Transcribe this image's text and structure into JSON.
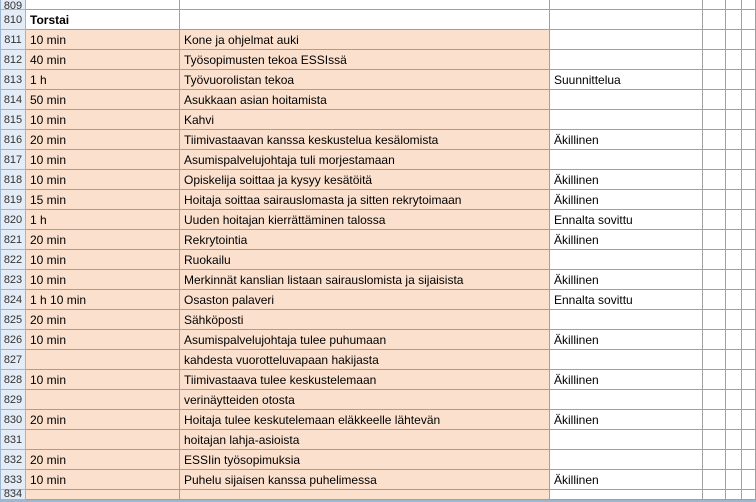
{
  "colors": {
    "highlight": "#fbe1cd",
    "rowhead_bg": "#e4ecf7",
    "rowhead_border": "#9eb6ce",
    "grid": "#a0a0a0",
    "cell_bg": "#ffffff"
  },
  "columns": [
    "rownum",
    "duration",
    "task",
    "status",
    "e",
    "f",
    "g"
  ],
  "rows": [
    {
      "num": "809",
      "b": "",
      "c": "",
      "d": "",
      "hl": false,
      "bold": false,
      "half": true
    },
    {
      "num": "810",
      "b": "Torstai",
      "c": "",
      "d": "",
      "hl": false,
      "bold": true
    },
    {
      "num": "811",
      "b": "10 min",
      "c": "Kone ja ohjelmat auki",
      "d": "",
      "hl": true
    },
    {
      "num": "812",
      "b": "40 min",
      "c": "Työsopimusten tekoa ESSIssä",
      "d": "",
      "hl": true
    },
    {
      "num": "813",
      "b": "1 h",
      "c": "Työvuorolistan tekoa",
      "d": "Suunnittelua",
      "hl": true
    },
    {
      "num": "814",
      "b": "50 min",
      "c": "Asukkaan asian hoitamista",
      "d": "",
      "hl": true
    },
    {
      "num": "815",
      "b": "10 min",
      "c": "Kahvi",
      "d": "",
      "hl": true
    },
    {
      "num": "816",
      "b": "20 min",
      "c": "Tiimivastaavan kanssa keskustelua kesälomista",
      "d": "Äkillinen",
      "hl": true
    },
    {
      "num": "817",
      "b": "10 min",
      "c": "Asumispalvelujohtaja tuli morjestamaan",
      "d": "",
      "hl": true
    },
    {
      "num": "818",
      "b": "10 min",
      "c": "Opiskelija soittaa ja kysyy kesätöitä",
      "d": "Äkillinen",
      "hl": true
    },
    {
      "num": "819",
      "b": "15 min",
      "c": "Hoitaja soittaa sairauslomasta ja sitten rekrytoimaan",
      "d": "Äkillinen",
      "hl": true
    },
    {
      "num": "820",
      "b": "1 h",
      "c": "Uuden hoitajan kierrättäminen talossa",
      "d": "Ennalta sovittu",
      "hl": true
    },
    {
      "num": "821",
      "b": "20 min",
      "c": "Rekrytointia",
      "d": "Äkillinen",
      "hl": true
    },
    {
      "num": "822",
      "b": "10 min",
      "c": "Ruokailu",
      "d": "",
      "hl": true
    },
    {
      "num": "823",
      "b": "10 min",
      "c": "Merkinnät kanslian listaan sairauslomista ja sijaisista",
      "d": "Äkillinen",
      "hl": true
    },
    {
      "num": "824",
      "b": "1 h 10 min",
      "c": "Osaston palaveri",
      "d": "Ennalta sovittu",
      "hl": true
    },
    {
      "num": "825",
      "b": "20 min",
      "c": "Sähköposti",
      "d": "",
      "hl": true
    },
    {
      "num": "826",
      "b": "10 min",
      "c": "Asumispalvelujohtaja tulee puhumaan",
      "d": "Äkillinen",
      "hl": true
    },
    {
      "num": "827",
      "b": "",
      "c": "kahdesta vuorotteluvapaan hakijasta",
      "d": "",
      "hl": true
    },
    {
      "num": "828",
      "b": "10 min",
      "c": "Tiimivastaava tulee keskustelemaan",
      "d": "Äkillinen",
      "hl": true
    },
    {
      "num": "829",
      "b": "",
      "c": "verinäytteiden otosta",
      "d": "",
      "hl": true
    },
    {
      "num": "830",
      "b": "20 min",
      "c": "Hoitaja tulee keskutelemaan eläkkeelle lähtevän",
      "d": "Äkillinen",
      "hl": true
    },
    {
      "num": "831",
      "b": "",
      "c": "hoitajan lahja-asioista",
      "d": "",
      "hl": true
    },
    {
      "num": "832",
      "b": "20 min",
      "c": "ESSIin työsopimuksia",
      "d": "",
      "hl": true
    },
    {
      "num": "833",
      "b": "10 min",
      "c": "Puhelu sijaisen kanssa puhelimessa",
      "d": "Äkillinen",
      "hl": true
    },
    {
      "num": "834",
      "b": "",
      "c": "",
      "d": "",
      "hl": true,
      "half": true
    }
  ]
}
